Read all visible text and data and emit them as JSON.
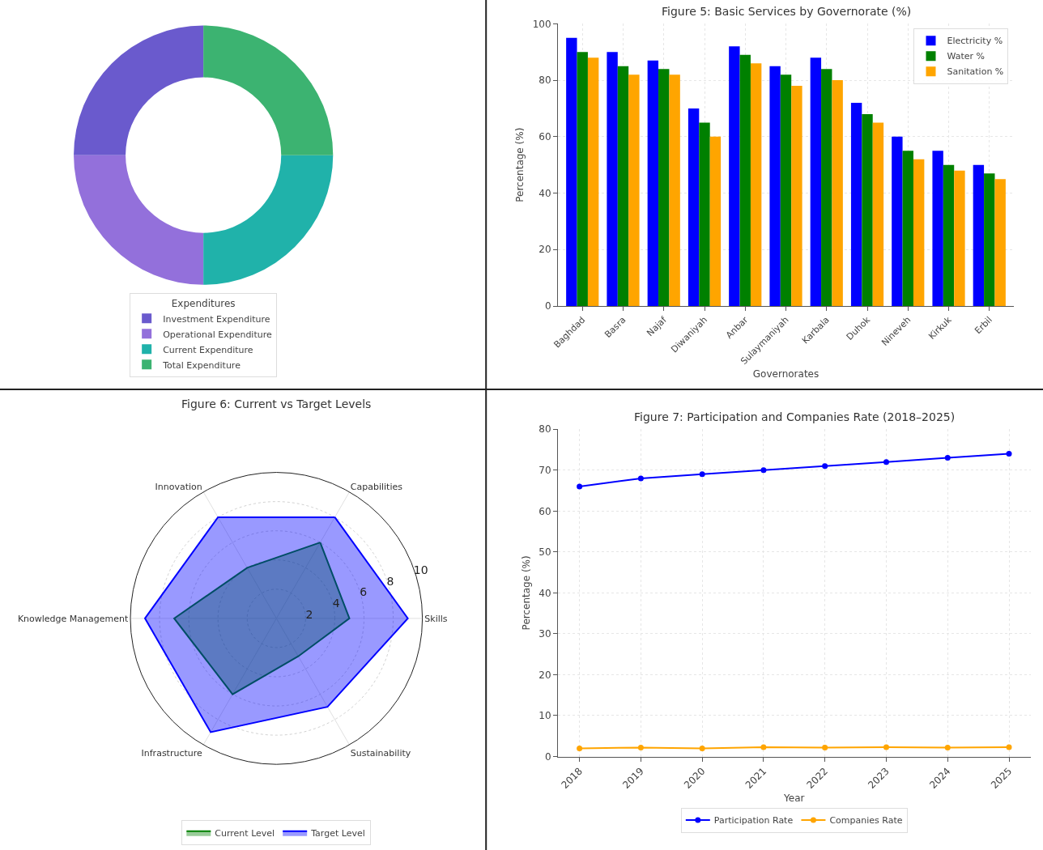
{
  "chart_data": [
    {
      "type": "donut",
      "legend_title": "Expenditures",
      "legend": "bottom",
      "categories": [
        "Investment Expenditure",
        "Operational Expenditure",
        "Current Expenditure",
        "Total Expenditure"
      ],
      "values": [
        25,
        25,
        25,
        25
      ],
      "colors": [
        "#6a5acd",
        "#9370db",
        "#20b2aa",
        "#3cb371"
      ]
    },
    {
      "type": "bar",
      "title": "Figure 5: Basic Services by Governorate (%)",
      "xlabel": "Governorates",
      "ylabel": "Percentage (%)",
      "categories": [
        "Baghdad",
        "Basra",
        "Najaf",
        "Diwaniyah",
        "Anbar",
        "Sulaymaniyah",
        "Karbala",
        "Duhok",
        "Nineveh",
        "Kirkuk",
        "Erbil"
      ],
      "ylim": [
        0,
        100
      ],
      "yticks": [
        0,
        20,
        40,
        60,
        80,
        100
      ],
      "grid": true,
      "legend": "top right",
      "series": [
        {
          "name": "Electricity %",
          "color": "#0000ff",
          "values": [
            95,
            90,
            87,
            70,
            92,
            85,
            88,
            72,
            60,
            55,
            50
          ]
        },
        {
          "name": "Water %",
          "color": "#008000",
          "values": [
            90,
            85,
            84,
            65,
            89,
            82,
            84,
            68,
            55,
            50,
            47
          ]
        },
        {
          "name": "Sanitation %",
          "color": "#ffa500",
          "values": [
            88,
            82,
            82,
            60,
            86,
            78,
            80,
            65,
            52,
            48,
            45
          ]
        }
      ]
    },
    {
      "type": "radar",
      "title": "Figure 6: Current vs Target Levels",
      "categories": [
        "Capabilities",
        "Skills",
        "Sustainability",
        "Infrastructure",
        "Knowledge Management",
        "Innovation"
      ],
      "ylim": [
        0,
        10
      ],
      "yticks": [
        2,
        4,
        6,
        8,
        10
      ],
      "grid": true,
      "legend": "bottom",
      "series": [
        {
          "name": "Current Level",
          "color": "#008000",
          "values": [
            6,
            5,
            3,
            6,
            7,
            4
          ]
        },
        {
          "name": "Target Level",
          "color": "#0000ff",
          "values": [
            8,
            9,
            7,
            9,
            9,
            8
          ]
        }
      ]
    },
    {
      "type": "line",
      "title": "Figure 7: Participation and Companies Rate (2018–2025)",
      "xlabel": "Year",
      "ylabel": "Percentage (%)",
      "x": [
        2018,
        2019,
        2020,
        2021,
        2022,
        2023,
        2024,
        2025
      ],
      "xlim": [
        2017.65,
        2025.35
      ],
      "xticks": [
        2018,
        2019,
        2020,
        2021,
        2022,
        2023,
        2024,
        2025
      ],
      "ylim": [
        0,
        80
      ],
      "yticks": [
        0,
        10,
        20,
        30,
        40,
        50,
        60,
        70,
        80
      ],
      "grid": true,
      "legend": "bottom",
      "marker": "circle",
      "line_style": "solid",
      "series": [
        {
          "name": "Participation Rate",
          "color": "#0000ff",
          "values": [
            66,
            68,
            69,
            70,
            71,
            72,
            73,
            74
          ]
        },
        {
          "name": "Companies Rate",
          "color": "#ffa500",
          "values": [
            2.0,
            2.2,
            2.0,
            2.3,
            2.2,
            2.3,
            2.2,
            2.3
          ]
        }
      ]
    }
  ]
}
